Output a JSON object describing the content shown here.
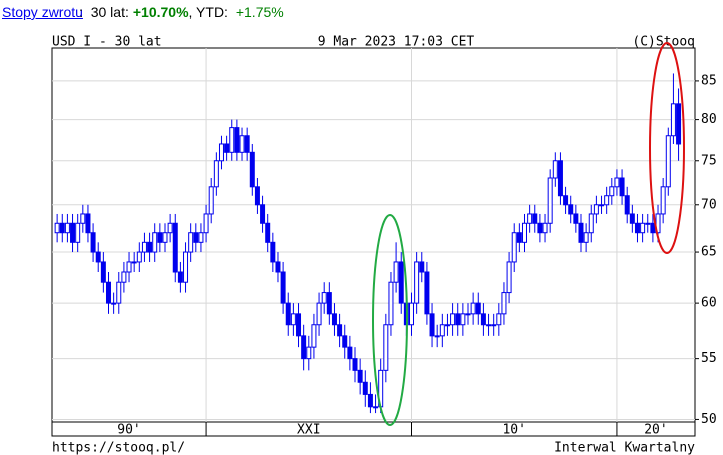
{
  "header": {
    "link": "Stopy zwrotu",
    "colon": ":",
    "period": "30 lat:",
    "return_30y": "+10.70%",
    "ytd_label": ", YTD:",
    "ytd": "+1.75%"
  },
  "chart_data": {
    "type": "candlestick",
    "title": "USD_I - 30 lat",
    "subtitle": "9 Mar 2023 17:03 CET",
    "source": "(C)Stooq",
    "footer_url": "https://stooq.pl/",
    "footer_interval": "Interwal Kwartalny",
    "color": "#0000ee",
    "log_scale": true,
    "grid": true,
    "xlim": [
      1992.5,
      2023.8
    ],
    "ylim": [
      49.8,
      89.5
    ],
    "yticks": [
      50,
      55,
      60,
      65,
      70,
      75,
      80,
      85
    ],
    "xgrid": [
      2000,
      2010,
      2020
    ],
    "xticks": [
      {
        "value": 1996.25,
        "label": "90'"
      },
      {
        "value": 2005,
        "label": "XXI"
      },
      {
        "value": 2015,
        "label": "10'"
      },
      {
        "value": 2021.9,
        "label": "20'"
      }
    ],
    "x": [
      1992.75,
      1993,
      1993.25,
      1993.5,
      1993.75,
      1994,
      1994.25,
      1994.5,
      1994.75,
      1995,
      1995.25,
      1995.5,
      1995.75,
      1996,
      1996.25,
      1996.5,
      1996.75,
      1997,
      1997.25,
      1997.5,
      1997.75,
      1998,
      1998.25,
      1998.5,
      1998.75,
      1999,
      1999.25,
      1999.5,
      1999.75,
      2000,
      2000.25,
      2000.5,
      2000.75,
      2001,
      2001.25,
      2001.5,
      2001.75,
      2002,
      2002.25,
      2002.5,
      2002.75,
      2003,
      2003.25,
      2003.5,
      2003.75,
      2004,
      2004.25,
      2004.5,
      2004.75,
      2005,
      2005.25,
      2005.5,
      2005.75,
      2006,
      2006.25,
      2006.5,
      2006.75,
      2007,
      2007.25,
      2007.5,
      2007.75,
      2008,
      2008.25,
      2008.5,
      2008.75,
      2009,
      2009.25,
      2009.5,
      2009.75,
      2010,
      2010.25,
      2010.5,
      2010.75,
      2011,
      2011.25,
      2011.5,
      2011.75,
      2012,
      2012.25,
      2012.5,
      2012.75,
      2013,
      2013.25,
      2013.5,
      2013.75,
      2014,
      2014.25,
      2014.5,
      2014.75,
      2015,
      2015.25,
      2015.5,
      2015.75,
      2016,
      2016.25,
      2016.5,
      2016.75,
      2017,
      2017.25,
      2017.5,
      2017.75,
      2018,
      2018.25,
      2018.5,
      2018.75,
      2019,
      2019.25,
      2019.5,
      2019.75,
      2020,
      2020.25,
      2020.5,
      2020.75,
      2021,
      2021.25,
      2021.5,
      2021.75,
      2022,
      2022.25,
      2022.5,
      2022.75,
      2023
    ],
    "open": [
      67,
      68,
      67,
      68,
      66,
      68,
      69,
      67,
      65,
      64,
      62,
      60,
      60,
      62,
      63,
      64,
      64,
      65,
      66,
      65,
      67,
      66,
      67,
      68,
      63,
      62,
      65,
      67,
      66,
      67,
      69,
      72,
      75,
      77,
      76,
      79,
      76,
      78,
      76,
      72,
      70,
      68,
      66,
      64,
      63,
      60,
      58,
      59,
      57,
      55,
      56,
      58,
      60,
      61,
      59,
      58,
      57,
      56,
      55,
      54,
      53,
      52,
      51,
      51,
      54,
      58,
      62,
      64,
      60,
      58,
      60,
      64,
      63,
      59,
      57,
      57,
      58,
      58,
      59,
      58,
      59,
      59,
      60,
      59,
      58,
      58,
      58,
      59,
      61,
      64,
      67,
      66,
      68,
      69,
      68,
      67,
      68,
      73,
      75,
      71,
      70,
      69,
      68,
      66,
      67,
      69,
      70,
      70,
      71,
      72,
      73,
      71,
      69,
      68,
      67,
      68,
      68,
      67,
      69,
      72,
      78,
      82
    ],
    "high": [
      69,
      69,
      69,
      69,
      69,
      70,
      70,
      68,
      66,
      65,
      63,
      61,
      63,
      64,
      65,
      65,
      66,
      67,
      67,
      68,
      68,
      68,
      69,
      69,
      64,
      66,
      68,
      68,
      68,
      70,
      73,
      76,
      78,
      78,
      80,
      80,
      79,
      79,
      77,
      73,
      71,
      69,
      67,
      65,
      64,
      61,
      60,
      60,
      58,
      57,
      59,
      61,
      62,
      62,
      60,
      59,
      58,
      57,
      56,
      55,
      54,
      53,
      52,
      55,
      59,
      63,
      66,
      65,
      61,
      61,
      65,
      65,
      64,
      60,
      58,
      59,
      59,
      60,
      60,
      60,
      60,
      61,
      61,
      60,
      59,
      59,
      60,
      62,
      65,
      68,
      68,
      69,
      70,
      70,
      69,
      69,
      74,
      76,
      76,
      72,
      71,
      70,
      69,
      68,
      70,
      71,
      71,
      72,
      73,
      74,
      74,
      72,
      70,
      69,
      69,
      69,
      69,
      70,
      73,
      79,
      86,
      84
    ],
    "low": [
      66,
      66,
      66,
      65,
      65,
      67,
      66,
      64,
      63,
      61,
      59,
      59,
      59,
      61,
      62,
      63,
      63,
      64,
      64,
      64,
      65,
      65,
      66,
      62,
      61,
      61,
      64,
      65,
      65,
      66,
      68,
      71,
      74,
      75,
      75,
      75,
      75,
      75,
      71,
      69,
      67,
      65,
      63,
      62,
      59,
      57,
      57,
      56,
      54,
      54,
      55,
      57,
      59,
      58,
      57,
      56,
      55,
      54,
      53,
      52,
      51,
      50.5,
      50.5,
      50.5,
      53,
      57,
      61,
      59,
      57,
      57,
      59,
      62,
      58,
      56,
      56,
      56,
      57,
      57,
      57,
      57,
      58,
      58,
      58,
      57,
      57,
      57,
      57,
      58,
      60,
      63,
      65,
      65,
      67,
      67,
      66,
      66,
      67,
      72,
      70,
      69,
      68,
      67,
      65,
      65,
      66,
      68,
      69,
      69,
      70,
      71,
      70,
      68,
      67,
      66,
      66,
      67,
      66,
      66,
      68,
      71,
      77,
      75
    ],
    "close": [
      68,
      67,
      68,
      66,
      68,
      69,
      67,
      65,
      64,
      62,
      60,
      60,
      62,
      63,
      64,
      64,
      65,
      66,
      65,
      67,
      66,
      67,
      68,
      63,
      62,
      65,
      67,
      66,
      67,
      69,
      72,
      75,
      77,
      76,
      79,
      76,
      78,
      76,
      72,
      70,
      68,
      66,
      64,
      63,
      60,
      58,
      59,
      57,
      55,
      56,
      58,
      60,
      61,
      59,
      58,
      57,
      56,
      55,
      54,
      53,
      52,
      51,
      51,
      54,
      58,
      62,
      64,
      60,
      58,
      60,
      64,
      63,
      59,
      57,
      57,
      58,
      58,
      59,
      58,
      59,
      59,
      60,
      59,
      58,
      58,
      58,
      59,
      61,
      64,
      67,
      66,
      68,
      69,
      68,
      67,
      68,
      73,
      75,
      71,
      70,
      69,
      68,
      66,
      67,
      69,
      70,
      70,
      71,
      72,
      73,
      71,
      69,
      68,
      67,
      68,
      68,
      67,
      69,
      72,
      78,
      82,
      77
    ]
  }
}
